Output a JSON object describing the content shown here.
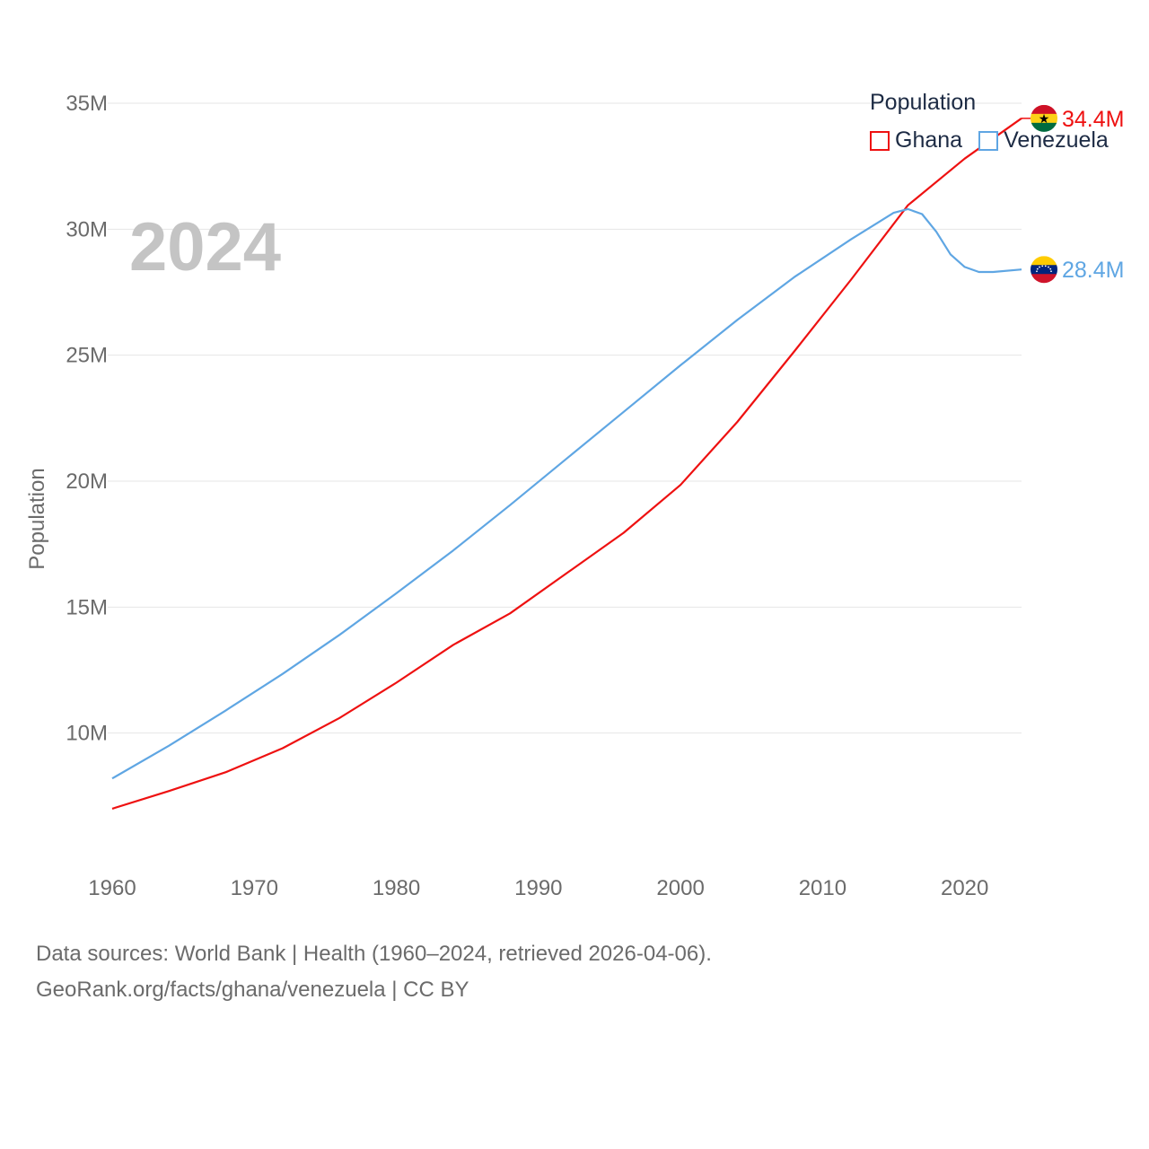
{
  "colors": {
    "ghana": "#ee1111",
    "venezuela": "#5fa6e3",
    "grid": "#e6e6e6",
    "tick": "#6b6b6b"
  },
  "legend": {
    "title": "Population",
    "items": [
      "Ghana",
      "Venezuela"
    ]
  },
  "year_label": "2024",
  "source": {
    "line1": "Data sources: World Bank | Health (1960–2024, retrieved 2026-04-06).",
    "line2": "GeoRank.org/facts/ghana/venezuela | CC BY"
  },
  "chart_data": {
    "type": "line",
    "title": "Population",
    "xlabel": "",
    "ylabel": "Population",
    "xlim": [
      1960,
      2024
    ],
    "ylim": [
      5000000,
      35000000
    ],
    "x_ticks": [
      1960,
      1970,
      1980,
      1990,
      2000,
      2010,
      2020
    ],
    "y_ticks": [
      {
        "value": 10000000,
        "label": "10M"
      },
      {
        "value": 15000000,
        "label": "15M"
      },
      {
        "value": 20000000,
        "label": "20M"
      },
      {
        "value": 25000000,
        "label": "25M"
      },
      {
        "value": 30000000,
        "label": "30M"
      },
      {
        "value": 35000000,
        "label": "35M"
      }
    ],
    "series": [
      {
        "name": "Ghana",
        "color": "#ee1111",
        "end_label": "34.4M",
        "x": [
          1960,
          1964,
          1968,
          1972,
          1976,
          1980,
          1984,
          1988,
          1992,
          1996,
          2000,
          2004,
          2008,
          2012,
          2016,
          2020,
          2024
        ],
        "y": [
          7000000,
          7700000,
          8450000,
          9400000,
          10600000,
          12000000,
          13500000,
          14750000,
          16350000,
          17950000,
          19850000,
          22350000,
          25150000,
          28000000,
          30950000,
          32800000,
          34400000
        ]
      },
      {
        "name": "Venezuela",
        "color": "#5fa6e3",
        "end_label": "28.4M",
        "x": [
          1960,
          1964,
          1968,
          1972,
          1976,
          1980,
          1984,
          1988,
          1992,
          1996,
          2000,
          2004,
          2008,
          2012,
          2014,
          2015,
          2016,
          2017,
          2018,
          2019,
          2020,
          2021,
          2022,
          2024
        ],
        "y": [
          8200000,
          9500000,
          10900000,
          12350000,
          13900000,
          15550000,
          17250000,
          19050000,
          20900000,
          22750000,
          24600000,
          26400000,
          28100000,
          29600000,
          30300000,
          30650000,
          30800000,
          30600000,
          29900000,
          29000000,
          28500000,
          28300000,
          28300000,
          28400000
        ]
      }
    ]
  }
}
